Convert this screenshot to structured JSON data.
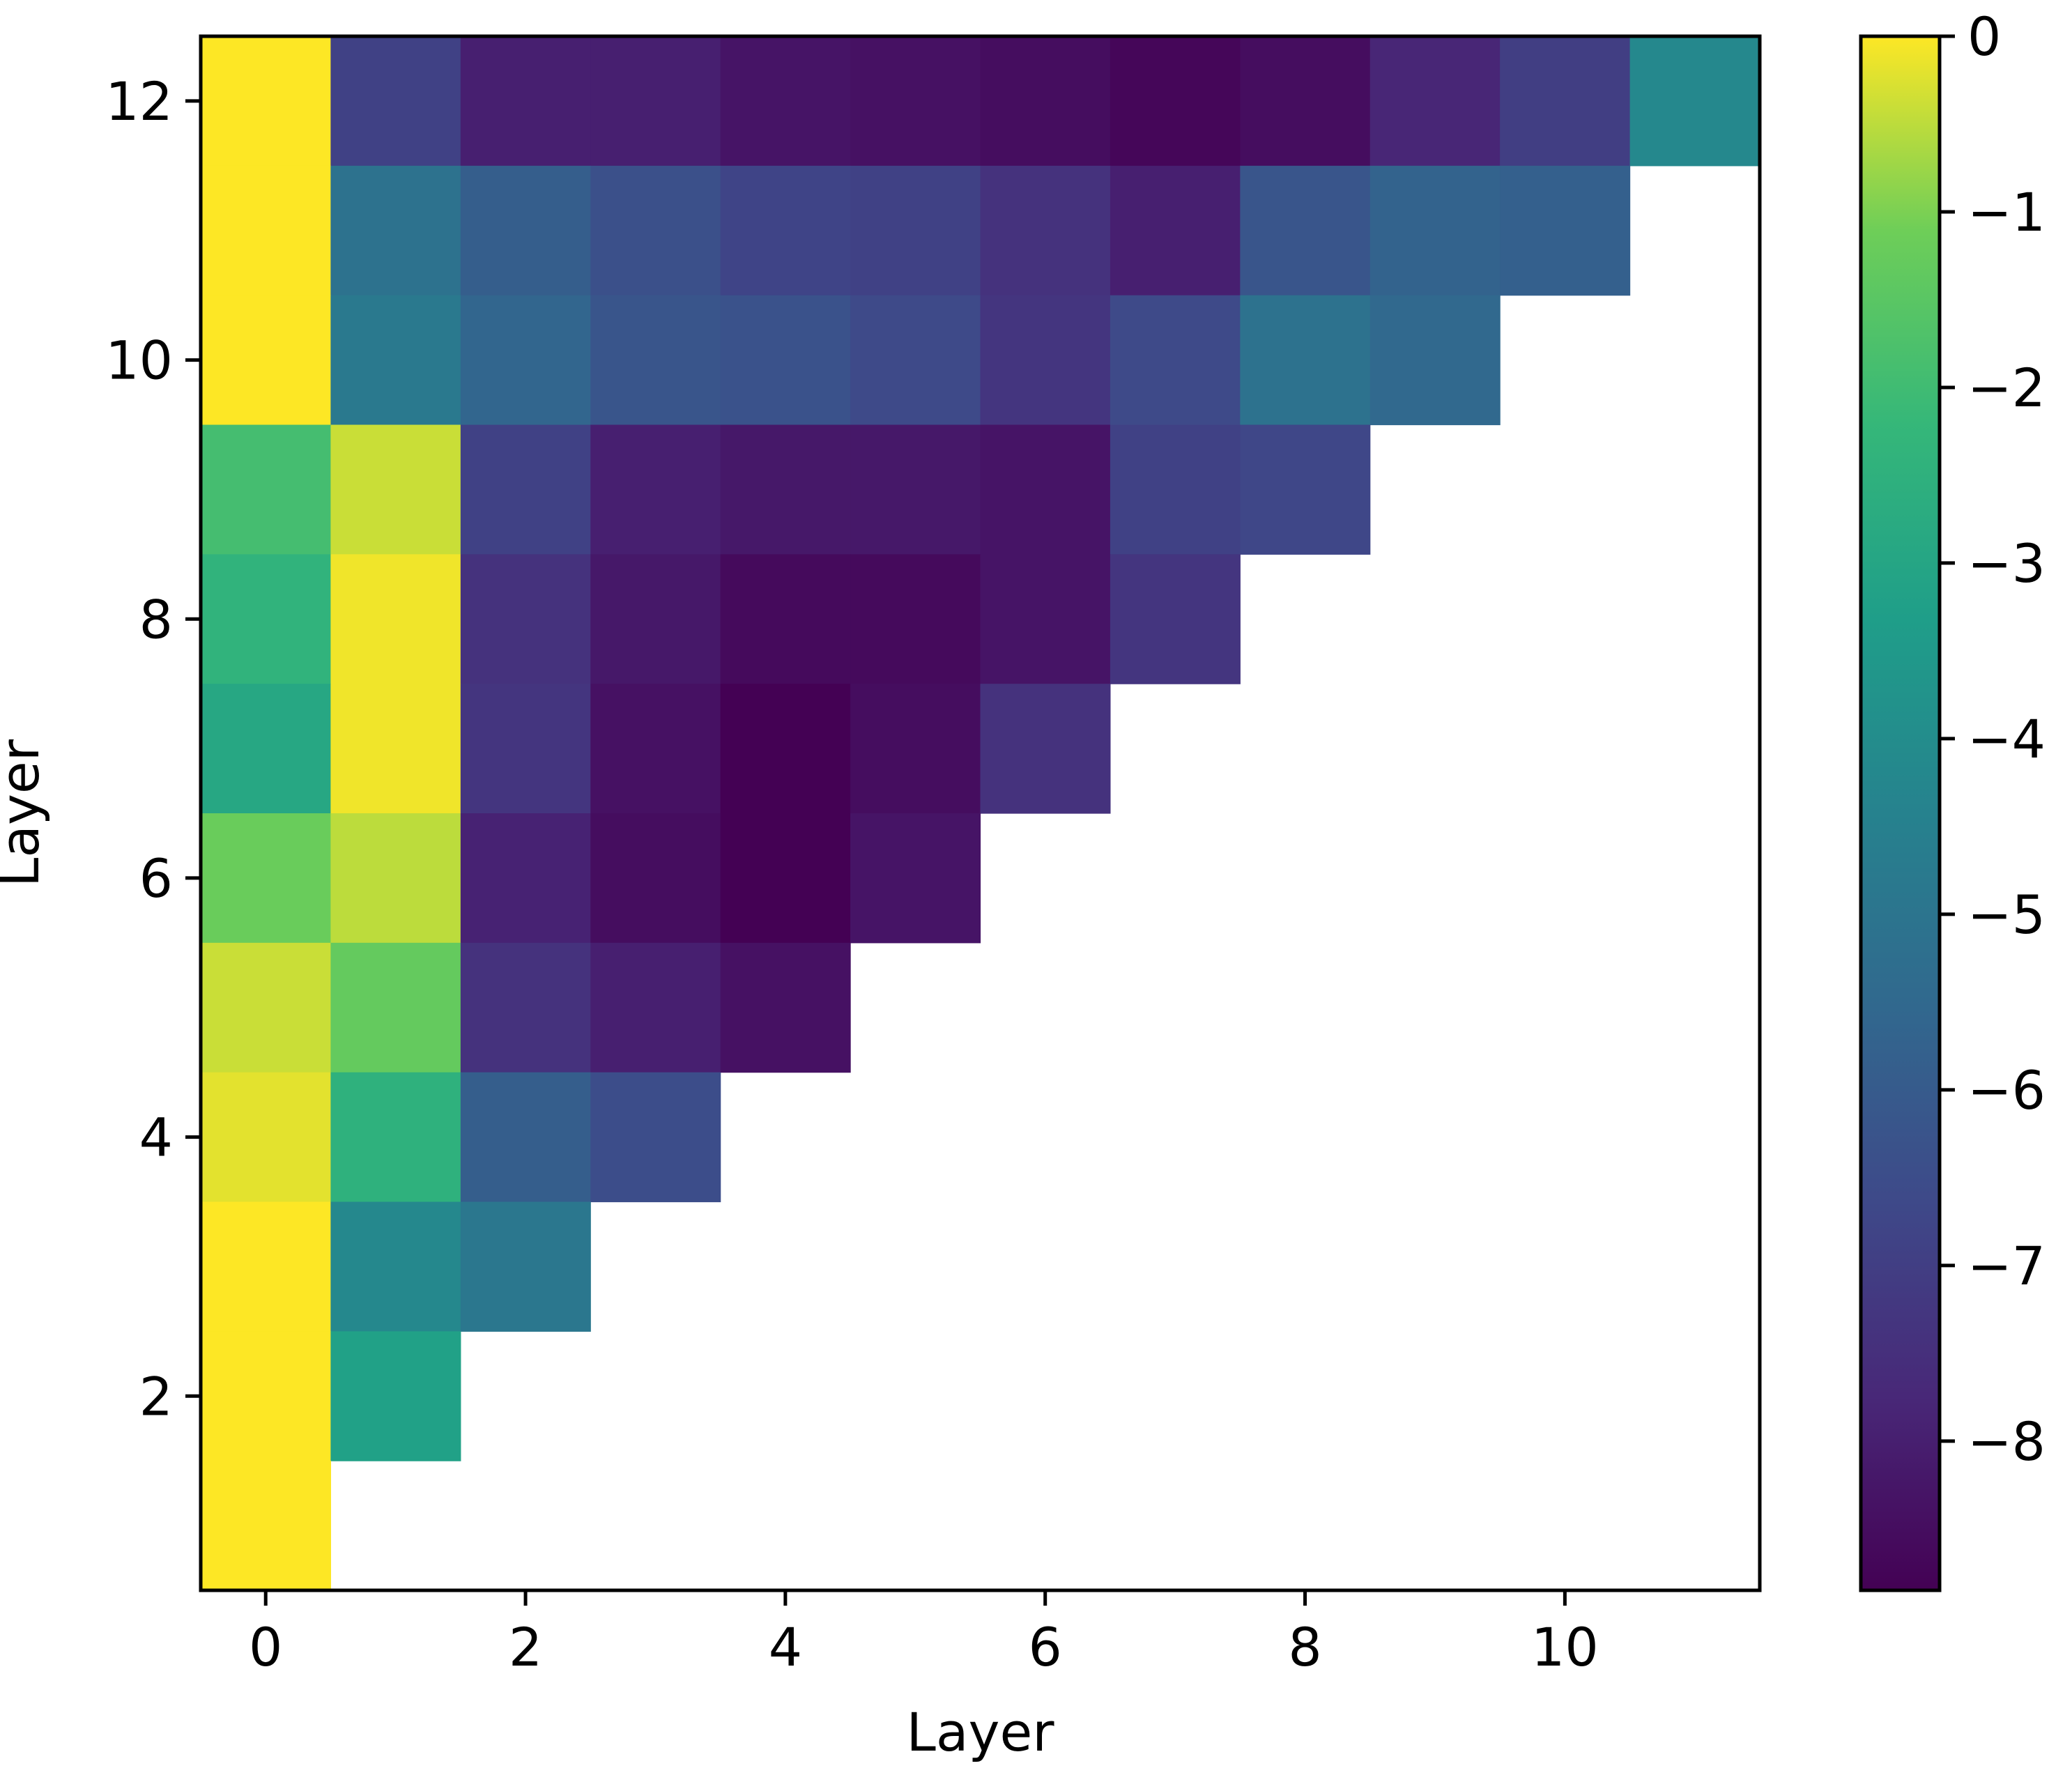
{
  "chart_data": {
    "type": "heatmap",
    "title": "",
    "xlabel": "Layer",
    "ylabel": "Layer",
    "x_ticks": [
      "0",
      "2",
      "4",
      "6",
      "8",
      "10"
    ],
    "y_ticks": [
      "2",
      "4",
      "6",
      "8",
      "10",
      "12"
    ],
    "colorbar_ticks": [
      "0",
      "−1",
      "−2",
      "−3",
      "−4",
      "−5",
      "−6",
      "−7",
      "−8"
    ],
    "colormap": "viridis",
    "color_range": [
      -8.85,
      0
    ],
    "x_values": [
      0,
      1,
      2,
      3,
      4,
      5,
      6,
      7,
      8,
      9,
      10,
      11
    ],
    "y_values": [
      1,
      2,
      3,
      4,
      5,
      6,
      7,
      8,
      9,
      10,
      11,
      12
    ],
    "rows": [
      {
        "y": 12,
        "values": [
          0,
          -6.9,
          -8.0,
          -8.0,
          -8.3,
          -8.4,
          -8.5,
          -8.7,
          -8.5,
          -7.8,
          -7.0,
          -4.2
        ]
      },
      {
        "y": 11,
        "values": [
          0,
          -5.1,
          -5.9,
          -6.4,
          -6.8,
          -6.9,
          -7.4,
          -8.0,
          -6.2,
          -5.7,
          -5.8
        ]
      },
      {
        "y": 10,
        "values": [
          0,
          -4.8,
          -5.6,
          -6.2,
          -6.3,
          -6.6,
          -7.3,
          -6.6,
          -5.1,
          -5.5
        ]
      },
      {
        "y": 9,
        "values": [
          -1.9,
          -0.4,
          -6.9,
          -8.0,
          -8.2,
          -8.2,
          -8.3,
          -6.9,
          -6.7
        ]
      },
      {
        "y": 8,
        "values": [
          -2.4,
          -0.1,
          -7.4,
          -8.2,
          -8.6,
          -8.6,
          -8.3,
          -7.3
        ]
      },
      {
        "y": 7,
        "values": [
          -2.9,
          -0.1,
          -7.3,
          -8.4,
          -8.85,
          -8.5,
          -7.4
        ]
      },
      {
        "y": 6,
        "values": [
          -1.2,
          -0.5,
          -7.9,
          -8.5,
          -8.85,
          -8.3
        ]
      },
      {
        "y": 5,
        "values": [
          -0.4,
          -1.3,
          -7.4,
          -8.0,
          -8.4
        ]
      },
      {
        "y": 4,
        "values": [
          -0.2,
          -2.5,
          -5.9,
          -6.5
        ]
      },
      {
        "y": 3,
        "values": [
          0,
          -4.2,
          -4.9
        ]
      },
      {
        "y": 2,
        "values": [
          0,
          -3.2
        ]
      },
      {
        "y": 1,
        "values": [
          0
        ]
      }
    ]
  }
}
